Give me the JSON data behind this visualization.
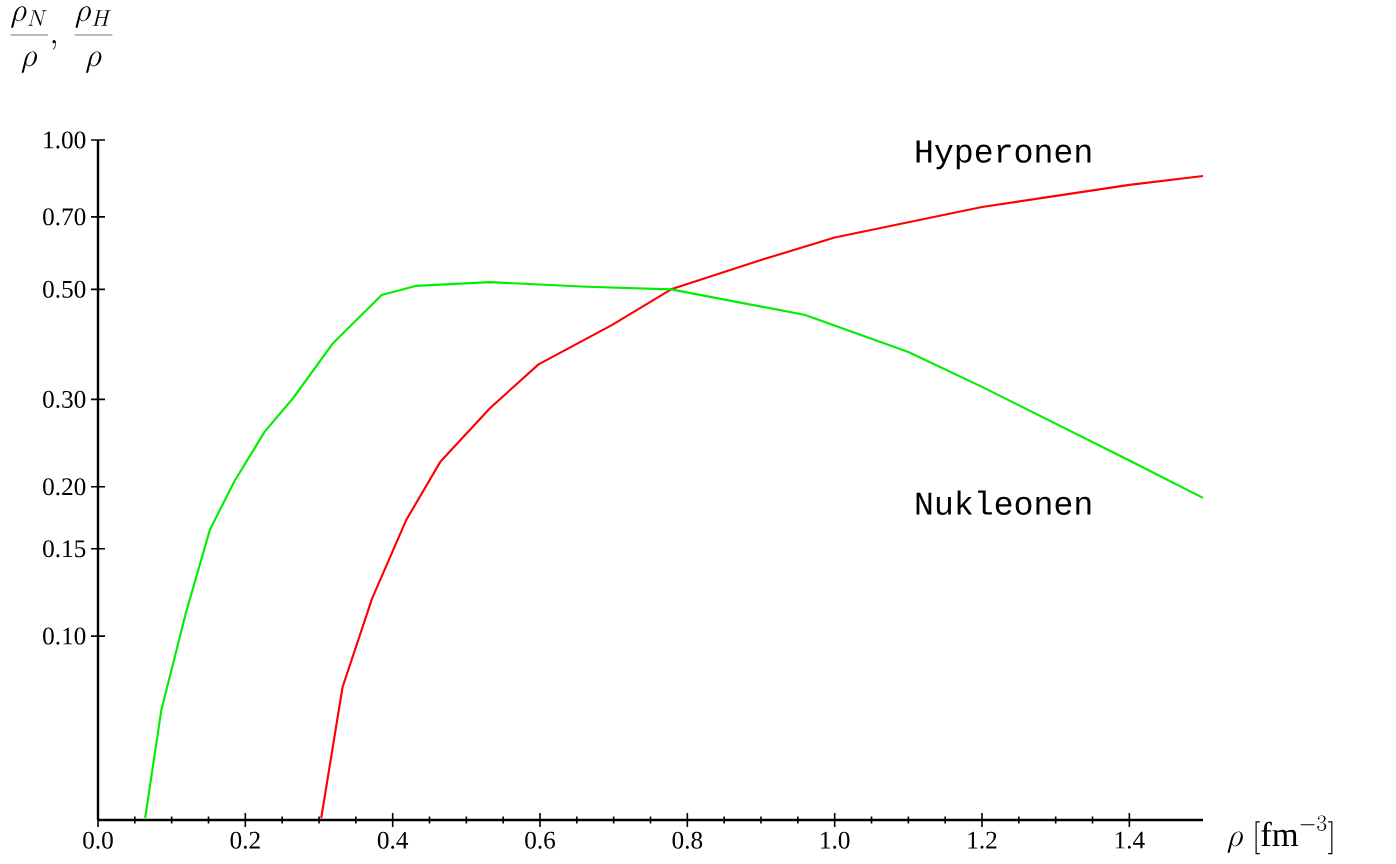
{
  "chart_data": {
    "type": "line",
    "xlabel": "\\rho\\ [\\mathrm{fm}^{-3}]",
    "ylabel": "\\frac{\\rho_N}{\\rho},\\ \\frac{\\rho_H}{\\rho}",
    "log": "y",
    "xlim": [
      0,
      1.5
    ],
    "ylim": [
      0.0426,
      1.0
    ],
    "xticks": [
      {
        "value": 0,
        "label": "0.0"
      },
      {
        "value": 0.2,
        "label": "0.2"
      },
      {
        "value": 0.4,
        "label": "0.4"
      },
      {
        "value": 0.6,
        "label": "0.6"
      },
      {
        "value": 0.8,
        "label": "0.8"
      },
      {
        "value": 1.0,
        "label": "1.0"
      },
      {
        "value": 1.2,
        "label": "1.2"
      },
      {
        "value": 1.4,
        "label": "1.4"
      }
    ],
    "yticks": [
      {
        "value": 0.1,
        "label": "0.10"
      },
      {
        "value": 0.15,
        "label": "0.15"
      },
      {
        "value": 0.2,
        "label": "0.20"
      },
      {
        "value": 0.3,
        "label": "0.30"
      },
      {
        "value": 0.5,
        "label": "0.50"
      },
      {
        "value": 0.7,
        "label": "0.70"
      },
      {
        "value": 1.0,
        "label": "1.00"
      }
    ],
    "series": [
      {
        "name": "Hyperonen",
        "color": "#ff0000",
        "x": [
          0.303,
          0.332,
          0.372,
          0.418,
          0.465,
          0.532,
          0.598,
          0.698,
          0.778,
          0.9,
          1.0,
          1.2,
          1.4,
          1.5
        ],
        "values": [
          0.043,
          0.079,
          0.119,
          0.171,
          0.225,
          0.288,
          0.353,
          0.424,
          0.5,
          0.573,
          0.636,
          0.733,
          0.812,
          0.846
        ]
      },
      {
        "name": "Nukleonen",
        "color": "#00ee00",
        "x": [
          0.064,
          0.086,
          0.119,
          0.152,
          0.185,
          0.226,
          0.265,
          0.318,
          0.385,
          0.431,
          0.532,
          0.664,
          0.778,
          0.96,
          1.1,
          1.2,
          1.4,
          1.5
        ],
        "values": [
          0.043,
          0.071,
          0.111,
          0.164,
          0.205,
          0.258,
          0.302,
          0.388,
          0.487,
          0.508,
          0.517,
          0.506,
          0.5,
          0.444,
          0.374,
          0.318,
          0.226,
          0.19
        ]
      }
    ]
  }
}
